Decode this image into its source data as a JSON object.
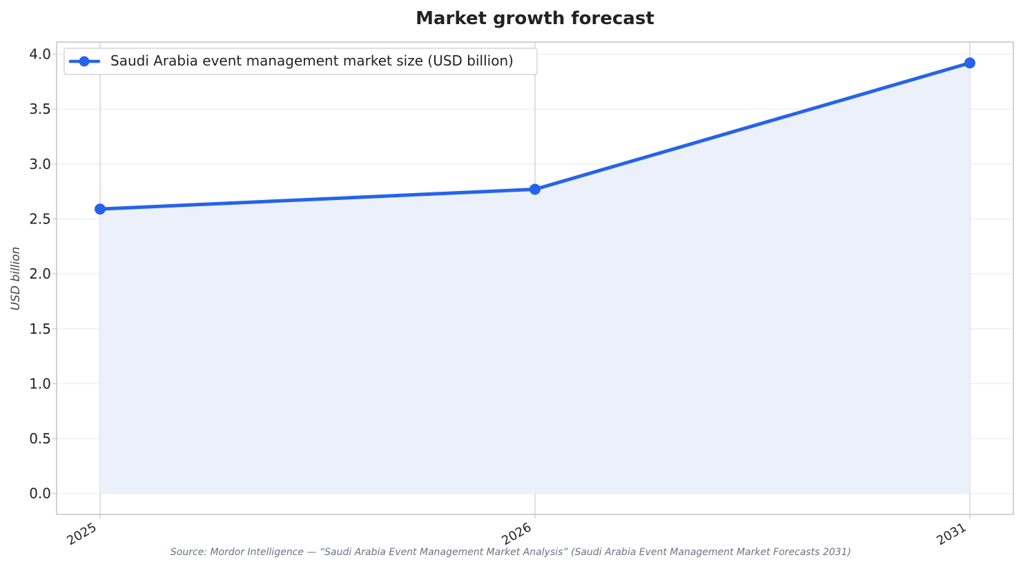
{
  "chart_data": {
    "type": "line",
    "title": "Market growth forecast",
    "ylabel": "USD billion",
    "xlabel": "",
    "categories": [
      "2025",
      "2026",
      "2031"
    ],
    "series": [
      {
        "name": "Saudi Arabia event management market size (USD billion)",
        "values": [
          2.59,
          2.77,
          3.92
        ],
        "color": "#2563eb"
      }
    ],
    "ylim": [
      -0.19,
      4.11
    ],
    "yticks": [
      "0.0",
      "0.5",
      "1.0",
      "1.5",
      "2.0",
      "2.5",
      "3.0",
      "3.5",
      "4.0"
    ],
    "grid": true,
    "legend": "top-left",
    "area_fill": "#ebf0fb",
    "source": "Source: Mordor Intelligence — “Saudi Arabia Event Management Market Analysis” (Saudi Arabia Event Management Market Forecasts 2031)"
  }
}
